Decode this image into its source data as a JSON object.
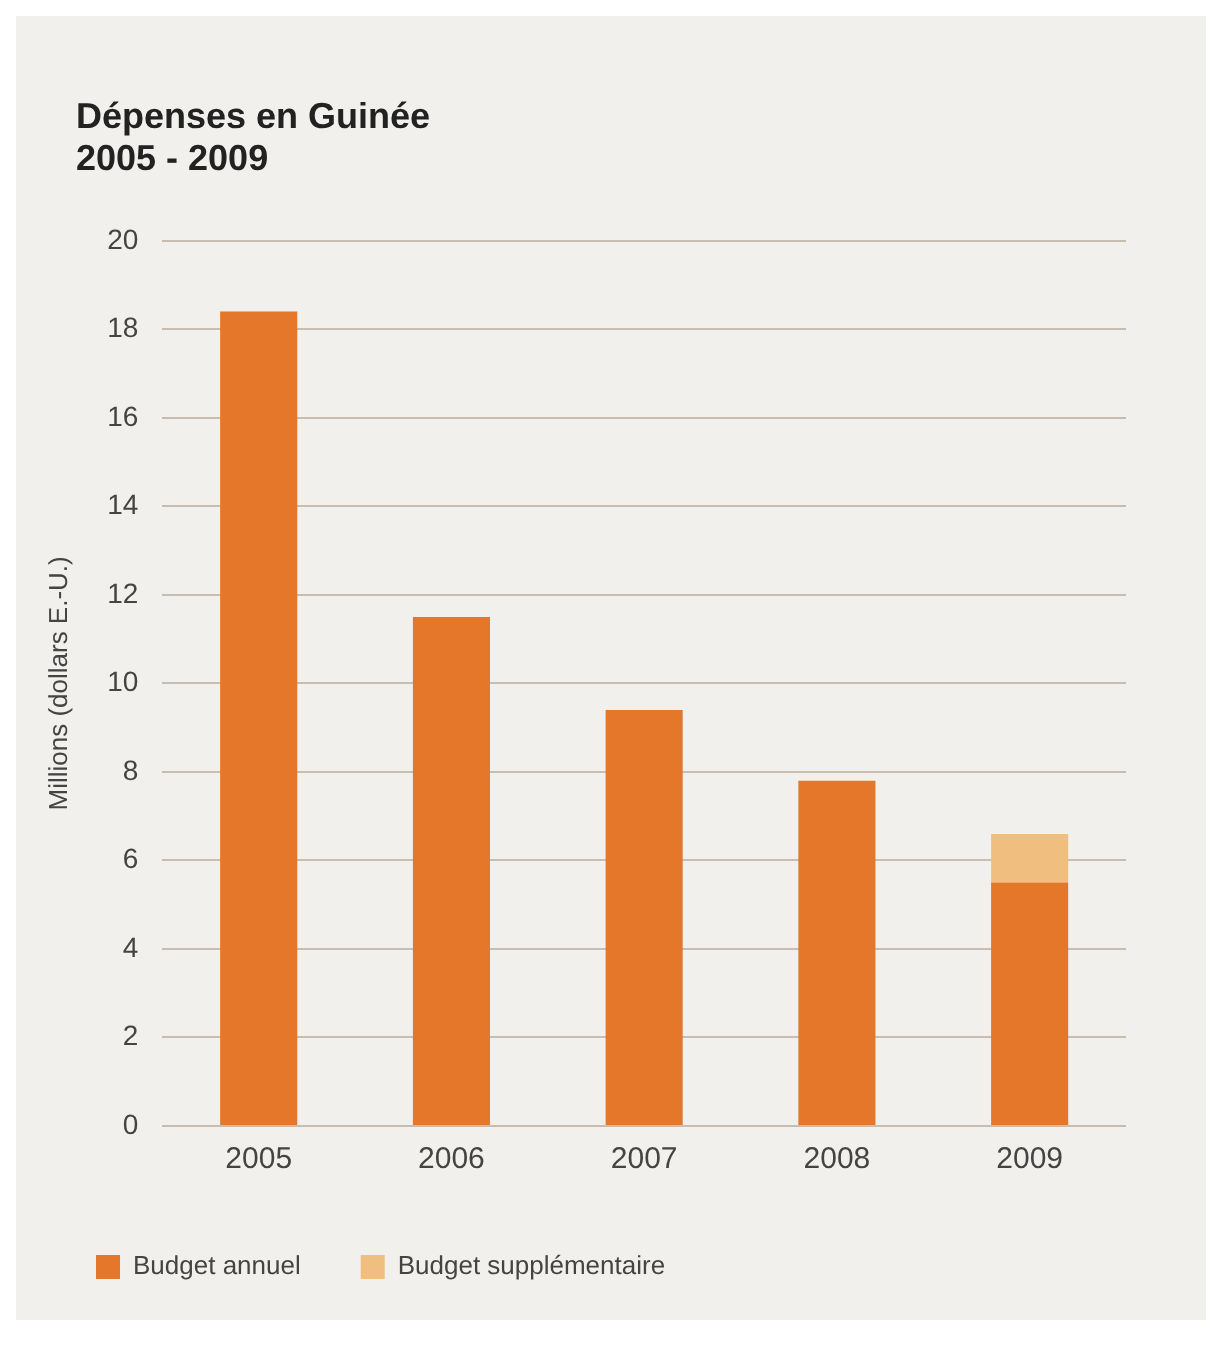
{
  "chart_data": {
    "type": "bar",
    "title": "Dépenses en Guinée\n2005 - 2009",
    "ylabel": "Millions (dollars E.-U.)",
    "categories": [
      "2005",
      "2006",
      "2007",
      "2008",
      "2009"
    ],
    "series": [
      {
        "name": "Budget annuel",
        "color": "#e5772a",
        "values": [
          18.4,
          11.5,
          9.4,
          7.8,
          5.5
        ]
      },
      {
        "name": "Budget supplémentaire",
        "color": "#f0bf80",
        "values": [
          null,
          null,
          null,
          null,
          1.1
        ]
      }
    ],
    "stacked": true,
    "ylim": [
      0,
      20
    ],
    "yticks": [
      0,
      2,
      4,
      6,
      8,
      10,
      12,
      14,
      16,
      18,
      20
    ],
    "grid": "y",
    "legend": "bottom left"
  }
}
